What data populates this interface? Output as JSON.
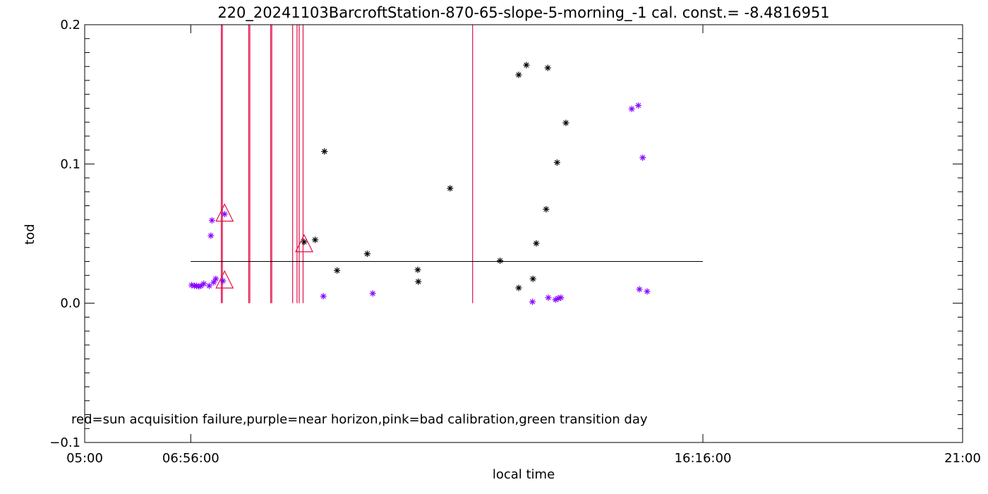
{
  "chart_data": {
    "type": "scatter",
    "title": "220_20241103BarcroftStation-870-65-slope-5-morning_-1 cal. const.= -8.4816951",
    "xlabel": "local time",
    "ylabel": "tod",
    "xlim_hours": [
      5.0,
      21.0
    ],
    "ylim": [
      -0.1,
      0.2
    ],
    "x_ticks": [
      {
        "hours": 5.0,
        "label": "05:00"
      },
      {
        "hours": 6.9333,
        "label": "06:56:00"
      },
      {
        "hours": 16.2667,
        "label": "16:16:00"
      },
      {
        "hours": 21.0,
        "label": "21:00"
      }
    ],
    "y_ticks": [
      {
        "value": -0.1,
        "label": "−0.1"
      },
      {
        "value": 0.0,
        "label": "0.0"
      },
      {
        "value": 0.1,
        "label": "0.1"
      },
      {
        "value": 0.2,
        "label": "0.2"
      }
    ],
    "legend_note": "red=sun acquisition failure,purple=near horizon,pink=bad calibration,green transition day",
    "mean_line": {
      "value": 0.03,
      "x_start_hours": 6.9333,
      "x_end_hours": 16.2667,
      "color": "#000000"
    },
    "colors": {
      "measurement": "#000000",
      "near_horizon": "#8800ff",
      "failure": "#e0104a"
    },
    "failure_lines_hours": [
      7.49,
      7.51,
      7.99,
      8.01,
      8.39,
      8.41,
      8.79,
      8.87,
      8.91,
      8.98,
      12.07
    ],
    "points": [
      {
        "x": 6.95,
        "y": 0.013,
        "near_horizon": true
      },
      {
        "x": 7.0,
        "y": 0.0125,
        "near_horizon": true
      },
      {
        "x": 7.04,
        "y": 0.0125,
        "near_horizon": true
      },
      {
        "x": 7.08,
        "y": 0.012,
        "near_horizon": true
      },
      {
        "x": 7.12,
        "y": 0.0125,
        "near_horizon": true
      },
      {
        "x": 7.17,
        "y": 0.014,
        "near_horizon": true
      },
      {
        "x": 7.27,
        "y": 0.0125,
        "near_horizon": true
      },
      {
        "x": 7.3,
        "y": 0.0485,
        "near_horizon": true
      },
      {
        "x": 7.32,
        "y": 0.0595,
        "near_horizon": true
      },
      {
        "x": 7.35,
        "y": 0.015,
        "near_horizon": true
      },
      {
        "x": 7.39,
        "y": 0.0175,
        "near_horizon": true
      },
      {
        "x": 7.52,
        "y": 0.016,
        "near_horizon": true
      },
      {
        "x": 7.55,
        "y": 0.064,
        "near_horizon": true
      },
      {
        "x": 9.0,
        "y": 0.044,
        "near_horizon": false
      },
      {
        "x": 9.2,
        "y": 0.0455,
        "near_horizon": false
      },
      {
        "x": 9.35,
        "y": 0.005,
        "near_horizon": true
      },
      {
        "x": 9.37,
        "y": 0.109,
        "near_horizon": false
      },
      {
        "x": 9.6,
        "y": 0.0235,
        "near_horizon": false
      },
      {
        "x": 10.15,
        "y": 0.0355,
        "near_horizon": false
      },
      {
        "x": 10.25,
        "y": 0.007,
        "near_horizon": true
      },
      {
        "x": 11.07,
        "y": 0.024,
        "near_horizon": false
      },
      {
        "x": 11.08,
        "y": 0.0155,
        "near_horizon": false
      },
      {
        "x": 11.66,
        "y": 0.0825,
        "near_horizon": false
      },
      {
        "x": 12.57,
        "y": 0.0305,
        "near_horizon": false
      },
      {
        "x": 12.91,
        "y": 0.164,
        "near_horizon": false
      },
      {
        "x": 12.91,
        "y": 0.011,
        "near_horizon": false
      },
      {
        "x": 13.05,
        "y": 0.171,
        "near_horizon": false
      },
      {
        "x": 13.16,
        "y": 0.001,
        "near_horizon": true
      },
      {
        "x": 13.17,
        "y": 0.0175,
        "near_horizon": false
      },
      {
        "x": 13.23,
        "y": 0.043,
        "near_horizon": false
      },
      {
        "x": 13.41,
        "y": 0.0675,
        "near_horizon": false
      },
      {
        "x": 13.44,
        "y": 0.169,
        "near_horizon": false
      },
      {
        "x": 13.45,
        "y": 0.004,
        "near_horizon": true
      },
      {
        "x": 13.58,
        "y": 0.0025,
        "near_horizon": true
      },
      {
        "x": 13.61,
        "y": 0.101,
        "near_horizon": false
      },
      {
        "x": 13.63,
        "y": 0.0035,
        "near_horizon": true
      },
      {
        "x": 13.68,
        "y": 0.004,
        "near_horizon": true
      },
      {
        "x": 13.77,
        "y": 0.1295,
        "near_horizon": false
      },
      {
        "x": 14.97,
        "y": 0.1395,
        "near_horizon": true
      },
      {
        "x": 15.09,
        "y": 0.142,
        "near_horizon": true
      },
      {
        "x": 15.11,
        "y": 0.01,
        "near_horizon": true
      },
      {
        "x": 15.17,
        "y": 0.1045,
        "near_horizon": true
      },
      {
        "x": 15.25,
        "y": 0.0085,
        "near_horizon": true
      }
    ],
    "failure_markers": [
      {
        "x": 7.55,
        "y": 0.064
      },
      {
        "x": 7.55,
        "y": 0.016
      },
      {
        "x": 9.0,
        "y": 0.042
      }
    ]
  }
}
